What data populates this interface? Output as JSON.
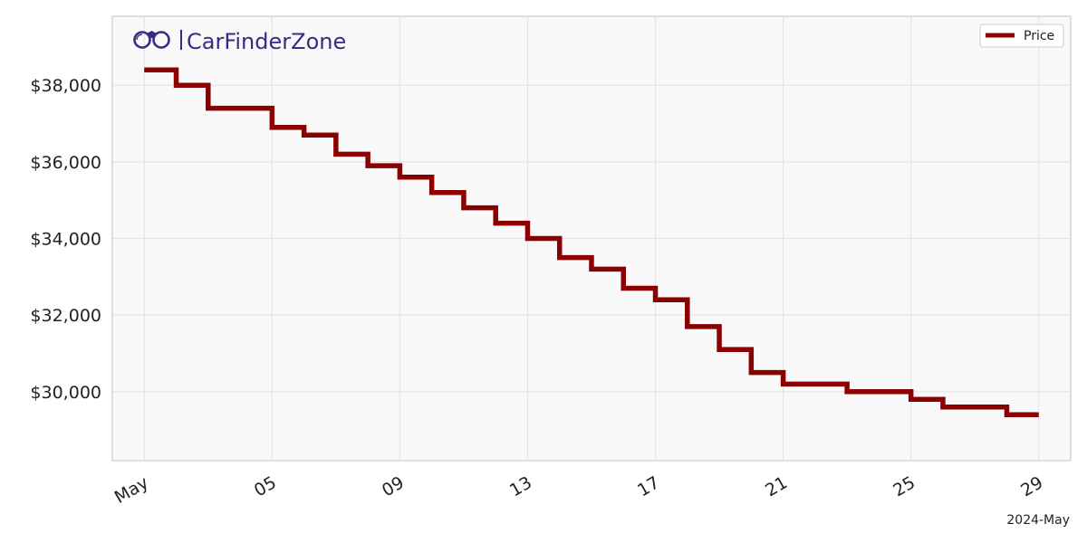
{
  "brand": {
    "name": "CarFinderZone",
    "color": "#3b2a86",
    "icon": "binoculars-icon"
  },
  "chart_data": {
    "type": "line",
    "step": true,
    "colors": {
      "line": "#8b0000",
      "plot_background": "#f9f9f9",
      "grid": "#e5e5e5",
      "frame": "#cccccc"
    },
    "xlim": [
      "2024-04-30",
      "2024-05-30"
    ],
    "ylim": [
      28200,
      39800
    ],
    "y_ticks": [
      30000,
      32000,
      34000,
      36000,
      38000
    ],
    "y_tick_labels": [
      "$30,000",
      "$32,000",
      "$34,000",
      "$36,000",
      "$38,000"
    ],
    "x_ticks": [
      "2024-05-01",
      "2024-05-05",
      "2024-05-09",
      "2024-05-13",
      "2024-05-17",
      "2024-05-21",
      "2024-05-25",
      "2024-05-29"
    ],
    "x_tick_labels": [
      "May",
      "05",
      "09",
      "13",
      "17",
      "21",
      "25",
      "29"
    ],
    "x_offset_label": "2024-May",
    "grid": true,
    "legend": {
      "position": "top-right",
      "entries": [
        "Price"
      ]
    },
    "series": [
      {
        "name": "Price",
        "x": [
          "2024-05-01",
          "2024-05-02",
          "2024-05-03",
          "2024-05-04",
          "2024-05-05",
          "2024-05-06",
          "2024-05-07",
          "2024-05-08",
          "2024-05-09",
          "2024-05-10",
          "2024-05-11",
          "2024-05-12",
          "2024-05-13",
          "2024-05-14",
          "2024-05-15",
          "2024-05-16",
          "2024-05-17",
          "2024-05-18",
          "2024-05-19",
          "2024-05-20",
          "2024-05-21",
          "2024-05-22",
          "2024-05-23",
          "2024-05-24",
          "2024-05-25",
          "2024-05-26",
          "2024-05-27",
          "2024-05-28",
          "2024-05-29"
        ],
        "values": [
          38400,
          38000,
          37400,
          37400,
          36900,
          36700,
          36200,
          35900,
          35600,
          35200,
          34800,
          34400,
          34000,
          33500,
          33200,
          32700,
          32400,
          31700,
          31100,
          30500,
          30200,
          30200,
          30000,
          30000,
          29800,
          29600,
          29600,
          29400,
          29400
        ]
      }
    ]
  }
}
